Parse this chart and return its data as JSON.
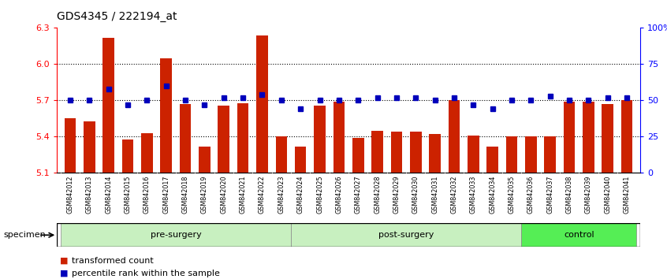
{
  "title": "GDS4345 / 222194_at",
  "samples": [
    "GSM842012",
    "GSM842013",
    "GSM842014",
    "GSM842015",
    "GSM842016",
    "GSM842017",
    "GSM842018",
    "GSM842019",
    "GSM842020",
    "GSM842021",
    "GSM842022",
    "GSM842023",
    "GSM842024",
    "GSM842025",
    "GSM842026",
    "GSM842027",
    "GSM842028",
    "GSM842029",
    "GSM842030",
    "GSM842031",
    "GSM842032",
    "GSM842033",
    "GSM842034",
    "GSM842035",
    "GSM842036",
    "GSM842037",
    "GSM842038",
    "GSM842039",
    "GSM842040",
    "GSM842041"
  ],
  "bar_values": [
    5.55,
    5.53,
    6.22,
    5.38,
    5.43,
    6.05,
    5.67,
    5.32,
    5.66,
    5.68,
    6.24,
    5.4,
    5.32,
    5.66,
    5.69,
    5.39,
    5.45,
    5.44,
    5.44,
    5.42,
    5.7,
    5.41,
    5.32,
    5.4,
    5.4,
    5.4,
    5.69,
    5.69,
    5.67,
    5.7
  ],
  "percentile_values": [
    50,
    50,
    58,
    47,
    50,
    60,
    50,
    47,
    52,
    52,
    54,
    50,
    44,
    50,
    50,
    50,
    52,
    52,
    52,
    50,
    52,
    47,
    44,
    50,
    50,
    53,
    50,
    50,
    52,
    52
  ],
  "ylim_left": [
    5.1,
    6.3
  ],
  "ylim_right": [
    0,
    100
  ],
  "yticks_left": [
    5.1,
    5.4,
    5.7,
    6.0,
    6.3
  ],
  "yticks_right": [
    0,
    25,
    50,
    75,
    100
  ],
  "ytick_labels_right": [
    "0",
    "25",
    "50",
    "75",
    "100%"
  ],
  "bar_color": "#cc2200",
  "percentile_color": "#0000bb",
  "groups": [
    {
      "label": "pre-surgery",
      "start": 0,
      "end": 12,
      "color": "#c8f0c0"
    },
    {
      "label": "post-surgery",
      "start": 12,
      "end": 24,
      "color": "#c8f0c0"
    },
    {
      "label": "control",
      "start": 24,
      "end": 30,
      "color": "#55ee55"
    }
  ],
  "legend_items": [
    {
      "label": "transformed count",
      "color": "#cc2200"
    },
    {
      "label": "percentile rank within the sample",
      "color": "#0000bb"
    }
  ],
  "specimen_label": "specimen"
}
